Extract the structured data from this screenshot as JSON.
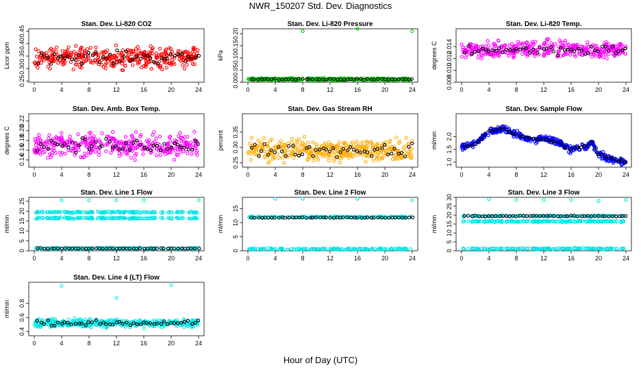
{
  "title": "NWR_150207  Std. Dev. Diagnostics",
  "xlabel": "Hour of Day (UTC)",
  "x_ticks": [
    0,
    4,
    8,
    12,
    16,
    20,
    24
  ],
  "chart_data": [
    {
      "type": "scatter",
      "title": "Stan. Dev. Li-820 CO2",
      "ylabel": "Licor ppm",
      "ylim": [
        0.245,
        0.46
      ],
      "yticks": [
        "0.25",
        "0.30",
        "0.35",
        "0.40",
        "0.45"
      ],
      "main_color": "#ff0000",
      "black_level": 0.345,
      "noise": 0.035
    },
    {
      "type": "scatter",
      "title": "Stan. Dev. Li-820 Pressure",
      "ylabel": "kPa",
      "ylim": [
        0.0,
        0.22
      ],
      "yticks": [
        "0.00",
        "0.05",
        "0.10",
        "0.15",
        "0.20"
      ],
      "main_color": "#00cc00",
      "black_level": 0.012,
      "noise": 0.004,
      "outliers": [
        [
          8,
          0.21
        ],
        [
          16,
          0.22
        ],
        [
          24,
          0.21
        ]
      ]
    },
    {
      "type": "scatter",
      "title": "Stan. Dev. Li-820 Temp.",
      "ylabel": "degrees C",
      "ylim": [
        0.008,
        0.017
      ],
      "yticks": [
        "0.008",
        "0.010",
        "0.012",
        "0.014"
      ],
      "main_color": "#ff00ff",
      "black_level": 0.0135,
      "noise": 0.0012
    },
    {
      "type": "scatter",
      "title": "Stan. Dev. Amb. Box Temp.",
      "ylabel": "degrees C",
      "ylim": [
        0.125,
        0.235
      ],
      "yticks": [
        "0.14",
        "0.16",
        "0.18",
        "0.20",
        "0.22"
      ],
      "main_color": "#ff00ff",
      "black_level": 0.17,
      "noise": 0.02
    },
    {
      "type": "scatter",
      "title": "Stan. Dev. Gas Stream RH",
      "ylabel": "percent",
      "ylim": [
        0.235,
        0.41
      ],
      "yticks": [
        "0.25",
        "0.30",
        "0.35"
      ],
      "main_color": "#ffaa00",
      "black_level": 0.29,
      "noise": 0.03
    },
    {
      "type": "scatter",
      "title": "Stan. Dev. Sample Flow",
      "ylabel": "ml/min",
      "ylim": [
        0.8,
        2.9
      ],
      "yticks": [
        "1.0",
        "1.5",
        "2.0"
      ],
      "main_color": "#0000ff",
      "profile": [
        [
          0,
          1.6
        ],
        [
          2,
          1.7
        ],
        [
          4,
          2.2
        ],
        [
          6,
          2.3
        ],
        [
          8,
          2.1
        ],
        [
          10,
          1.9
        ],
        [
          12,
          1.9
        ],
        [
          14,
          1.8
        ],
        [
          16,
          1.5
        ],
        [
          18,
          1.6
        ],
        [
          19,
          1.8
        ],
        [
          20,
          1.3
        ],
        [
          22,
          1.1
        ],
        [
          24,
          1.0
        ]
      ],
      "noise": 0.12
    },
    {
      "type": "scatter",
      "title": "Stan. Dev. Line 1 Flow",
      "ylabel": "ml/min",
      "ylim": [
        0,
        27
      ],
      "yticks": [
        "0",
        "5",
        "10",
        "15",
        "20",
        "25"
      ],
      "main_color": "#00e5e5",
      "bands": [
        19.5,
        16.5,
        1.2
      ],
      "black_level": 1.2,
      "outliers": [
        [
          4,
          25.5
        ],
        [
          8,
          25.5
        ],
        [
          12,
          25.5
        ],
        [
          16,
          25.5
        ],
        [
          24,
          25.5
        ]
      ]
    },
    {
      "type": "scatter",
      "title": "Stan. Dev. Line 2 Flow",
      "ylabel": "ml/min",
      "ylim": [
        0,
        19
      ],
      "yticks": [
        "0",
        "5",
        "10",
        "15"
      ],
      "main_color": "#00e5e5",
      "bands": [
        12,
        0.6
      ],
      "black_level": 11.8,
      "outliers": [
        [
          4,
          18.5
        ],
        [
          8,
          18.5
        ],
        [
          16,
          18.5
        ],
        [
          24,
          18
        ]
      ]
    },
    {
      "type": "scatter",
      "title": "Stan. Dev. Line 3 Flow",
      "ylabel": "ml/min",
      "ylim": [
        0,
        30
      ],
      "yticks": [
        "0",
        "5",
        "10",
        "15",
        "20",
        "25",
        "30"
      ],
      "main_color": "#00e5e5",
      "bands": [
        19.5,
        16.5,
        1.2
      ],
      "black_level": 19.5,
      "outliers": [
        [
          4,
          29
        ],
        [
          8,
          28.5
        ],
        [
          12,
          28.5
        ],
        [
          16,
          28.5
        ],
        [
          20,
          28
        ],
        [
          24,
          28.5
        ]
      ]
    },
    {
      "type": "scatter",
      "title": "Stan. Dev. Line 4 (LT) Flow",
      "ylabel": "ml/min",
      "ylim": [
        0.34,
        1.1
      ],
      "yticks": [
        "0.4",
        "0.6",
        "0.8"
      ],
      "main_color": "#00e5e5",
      "black_level": 0.52,
      "noise": 0.05,
      "outliers": [
        [
          4,
          1.05
        ],
        [
          12,
          0.88
        ],
        [
          20,
          1.06
        ]
      ]
    }
  ]
}
